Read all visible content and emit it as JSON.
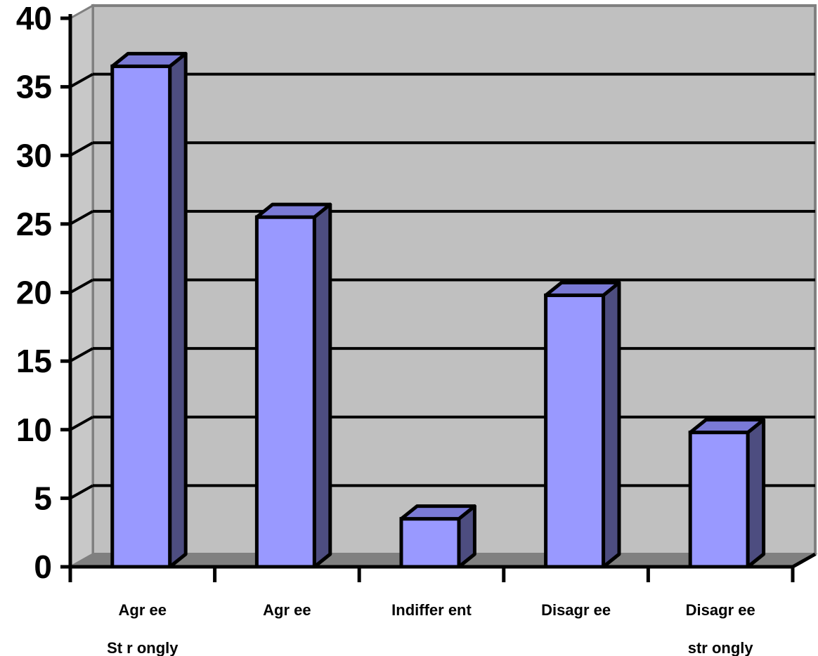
{
  "chart_data": {
    "type": "bar",
    "style": "3d",
    "categories": [
      [
        "Agr ee",
        "St r ongly"
      ],
      [
        "Agr ee"
      ],
      [
        "Indiffer ent"
      ],
      [
        "Disagr ee"
      ],
      [
        "Disagr ee",
        "str ongly"
      ]
    ],
    "values": [
      36.5,
      25.5,
      3.5,
      19.8,
      9.8
    ],
    "yticks": [
      "0",
      "5",
      "10",
      "15",
      "20",
      "25",
      "30",
      "35",
      "40"
    ],
    "ylim": [
      0,
      40
    ],
    "grid": true,
    "title": "",
    "xlabel": "",
    "ylabel": "",
    "colors": {
      "bar_front": "#9999ff",
      "bar_side": "#4d4d80",
      "wall": "#c0c0c0",
      "floor": "#808080",
      "gridline": "#000000"
    }
  }
}
